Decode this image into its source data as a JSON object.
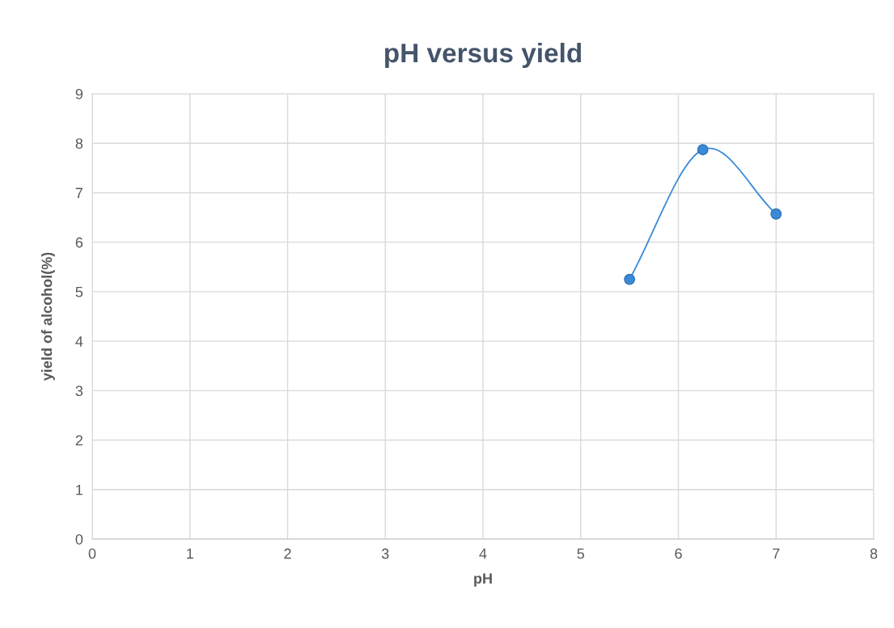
{
  "chart_data": {
    "type": "line",
    "title": "pH versus yield",
    "xlabel": "pH",
    "ylabel": "yield of alcohol(%)",
    "x": [
      5.5,
      6.25,
      7
    ],
    "series": [
      {
        "color": "#3a8ad6",
        "values": [
          5.25,
          7.87,
          6.57
        ]
      }
    ],
    "xlim": [
      0,
      8
    ],
    "xticks": [
      0,
      1,
      2,
      3,
      4,
      5,
      6,
      7,
      8
    ],
    "ylim": [
      0,
      9
    ],
    "yticks": [
      0,
      1,
      2,
      3,
      4,
      5,
      6,
      7,
      8,
      9
    ],
    "grid": true,
    "marker": "circle",
    "line_style": "solid"
  }
}
